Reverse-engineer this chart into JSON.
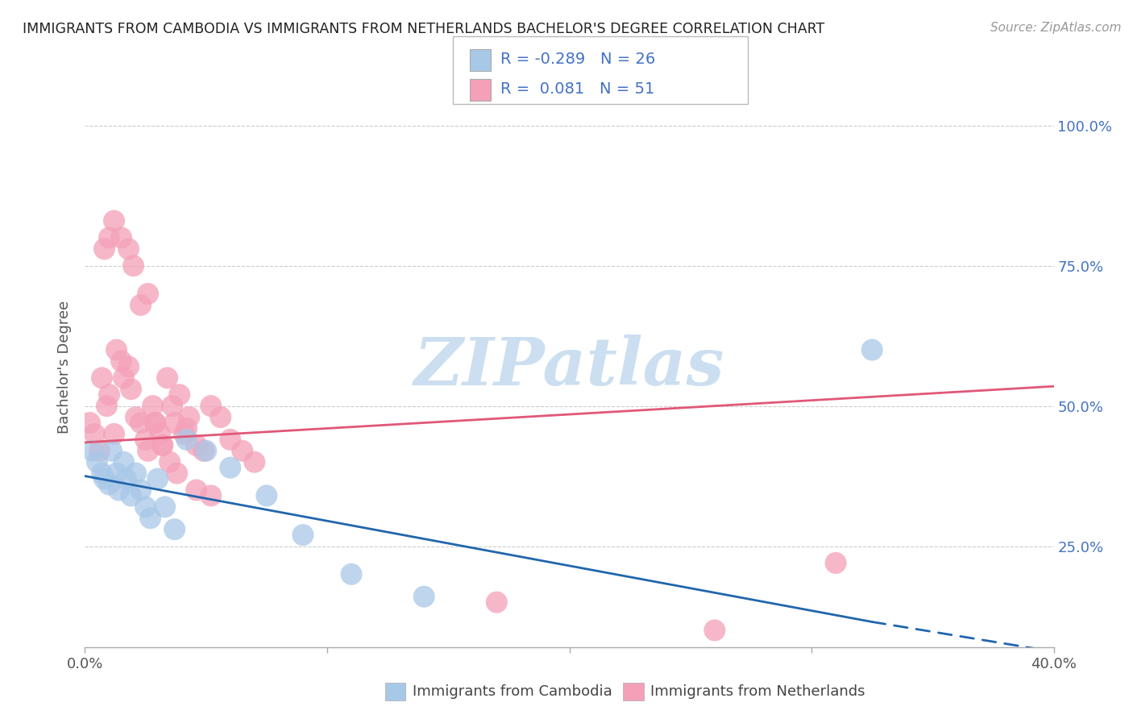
{
  "title": "IMMIGRANTS FROM CAMBODIA VS IMMIGRANTS FROM NETHERLANDS BACHELOR'S DEGREE CORRELATION CHART",
  "source": "Source: ZipAtlas.com",
  "ylabel": "Bachelor's Degree",
  "r1": "-0.289",
  "n1": "26",
  "r2": "0.081",
  "n2": "51",
  "legend_label_1": "Immigrants from Cambodia",
  "legend_label_2": "Immigrants from Netherlands",
  "color_cambodia": "#a8c8e8",
  "color_netherlands": "#f4a0b8",
  "color_line_cambodia": "#2166ac",
  "color_line_netherlands": "#e05878",
  "watermark_text": "ZIPatlas",
  "watermark_color": "#ccdff0",
  "background_color": "#ffffff",
  "grid_color": "#cccccc",
  "xlim": [
    0.0,
    0.4
  ],
  "ylim": [
    0.07,
    1.07
  ],
  "yticks": [
    0.25,
    0.5,
    0.75,
    1.0
  ],
  "ytick_labels_right": [
    "25.0%",
    "50.0%",
    "75.0%",
    "100.0%"
  ],
  "xticks": [
    0.0,
    0.1,
    0.2,
    0.3,
    0.4
  ],
  "xtick_labels": [
    "0.0%",
    "",
    "",
    "",
    "40.0%"
  ],
  "cambodia_x": [
    0.003,
    0.005,
    0.007,
    0.008,
    0.01,
    0.011,
    0.013,
    0.014,
    0.016,
    0.017,
    0.019,
    0.021,
    0.023,
    0.025,
    0.027,
    0.03,
    0.033,
    0.037,
    0.042,
    0.05,
    0.06,
    0.075,
    0.09,
    0.11,
    0.14,
    0.325
  ],
  "cambodia_y": [
    0.42,
    0.4,
    0.38,
    0.37,
    0.36,
    0.42,
    0.38,
    0.35,
    0.4,
    0.37,
    0.34,
    0.38,
    0.35,
    0.32,
    0.3,
    0.37,
    0.32,
    0.28,
    0.44,
    0.42,
    0.39,
    0.34,
    0.27,
    0.2,
    0.16,
    0.6
  ],
  "netherlands_x": [
    0.002,
    0.004,
    0.006,
    0.007,
    0.009,
    0.01,
    0.012,
    0.013,
    0.015,
    0.016,
    0.018,
    0.019,
    0.021,
    0.023,
    0.025,
    0.026,
    0.028,
    0.029,
    0.031,
    0.032,
    0.034,
    0.036,
    0.037,
    0.039,
    0.041,
    0.043,
    0.046,
    0.049,
    0.052,
    0.056,
    0.06,
    0.065,
    0.07,
    0.008,
    0.01,
    0.012,
    0.015,
    0.018,
    0.02,
    0.023,
    0.026,
    0.029,
    0.032,
    0.035,
    0.038,
    0.042,
    0.046,
    0.052,
    0.17,
    0.26,
    0.31
  ],
  "netherlands_y": [
    0.47,
    0.45,
    0.42,
    0.55,
    0.5,
    0.52,
    0.45,
    0.6,
    0.58,
    0.55,
    0.57,
    0.53,
    0.48,
    0.47,
    0.44,
    0.42,
    0.5,
    0.47,
    0.45,
    0.43,
    0.55,
    0.5,
    0.47,
    0.52,
    0.45,
    0.48,
    0.43,
    0.42,
    0.5,
    0.48,
    0.44,
    0.42,
    0.4,
    0.78,
    0.8,
    0.83,
    0.8,
    0.78,
    0.75,
    0.68,
    0.7,
    0.47,
    0.43,
    0.4,
    0.38,
    0.46,
    0.35,
    0.34,
    0.15,
    0.1,
    0.22
  ],
  "line_cambodia_x0": 0.0,
  "line_cambodia_x1": 0.325,
  "line_cambodia_x_dash_end": 0.4,
  "line_cambodia_y0": 0.375,
  "line_cambodia_y1": 0.115,
  "line_cambodia_y_dash_end": 0.062,
  "line_netherlands_x0": 0.0,
  "line_netherlands_x1": 0.4,
  "line_netherlands_y0": 0.435,
  "line_netherlands_y1": 0.535
}
